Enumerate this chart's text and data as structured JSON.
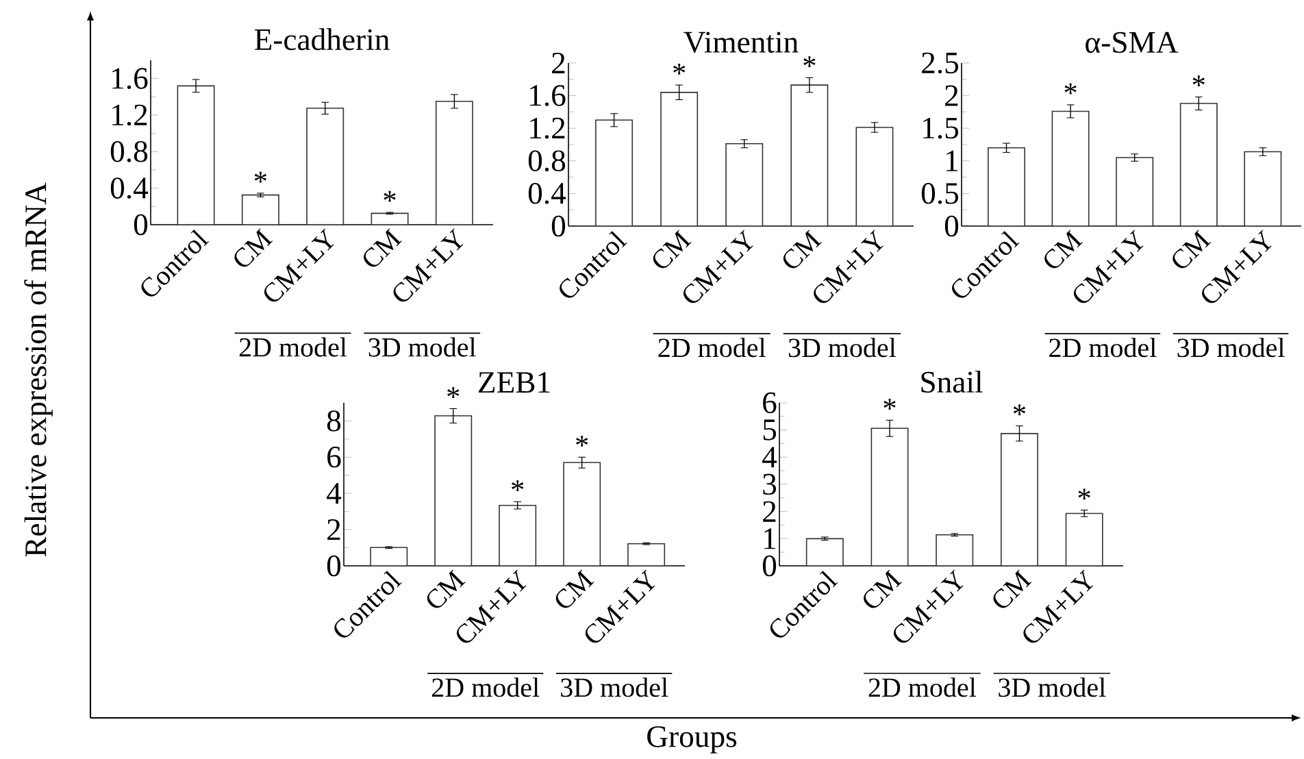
{
  "chart_data": [
    {
      "type": "bar",
      "title": "E-cadherin",
      "ylabel": "Relative expression of mRNA",
      "xlabel": "Groups",
      "categories": [
        "Control",
        "CM",
        "CM+LY",
        "CM",
        "CM+LY"
      ],
      "values": [
        1.52,
        0.325,
        1.275,
        0.125,
        1.35
      ],
      "errors": [
        0.07,
        0.02,
        0.065,
        0.01,
        0.075
      ],
      "value_labels": [
        null,
        "*",
        null,
        "*",
        null
      ],
      "color": "#ffffff",
      "ylim": [
        0,
        1.8
      ],
      "yticks": [
        0,
        0.4,
        0.8,
        1.2,
        1.6
      ],
      "annotations": [
        "2D model",
        "3D model"
      ]
    },
    {
      "type": "bar",
      "title": "Vimentin",
      "categories": [
        "Control",
        "CM",
        "CM+LY",
        "CM",
        "CM+LY"
      ],
      "values": [
        1.3,
        1.64,
        1.01,
        1.73,
        1.21
      ],
      "errors": [
        0.08,
        0.09,
        0.05,
        0.09,
        0.06
      ],
      "value_labels": [
        null,
        "*",
        null,
        "*",
        null
      ],
      "color": "#ffffff",
      "ylim": [
        0,
        2
      ],
      "yticks": [
        0,
        0.4,
        0.8,
        1.2,
        1.6,
        2
      ],
      "annotations": [
        "2D model",
        "3D model"
      ]
    },
    {
      "type": "bar",
      "title": "α-SMA",
      "categories": [
        "Control",
        "CM",
        "CM+LY",
        "CM",
        "CM+LY"
      ],
      "values": [
        1.2,
        1.76,
        1.05,
        1.88,
        1.14
      ],
      "errors": [
        0.07,
        0.1,
        0.055,
        0.1,
        0.06
      ],
      "value_labels": [
        null,
        "*",
        null,
        "*",
        null
      ],
      "color": "#ffffff",
      "ylim": [
        0,
        2.5
      ],
      "yticks": [
        0,
        0.5,
        1,
        1.5,
        2,
        2.5
      ],
      "annotations": [
        "2D model",
        "3D model"
      ]
    },
    {
      "type": "bar",
      "title": "ZEB1",
      "categories": [
        "Control",
        "CM",
        "CM+LY",
        "CM",
        "CM+LY"
      ],
      "values": [
        1.01,
        8.28,
        3.34,
        5.7,
        1.22
      ],
      "errors": [
        0.05,
        0.4,
        0.2,
        0.3,
        0.05
      ],
      "value_labels": [
        null,
        "*",
        "*",
        "*",
        null
      ],
      "color": "#ffffff",
      "ylim": [
        0,
        9
      ],
      "yticks": [
        0,
        2,
        4,
        6,
        8
      ],
      "annotations": [
        "2D model",
        "3D model"
      ]
    },
    {
      "type": "bar",
      "title": "Snail",
      "categories": [
        "Control",
        "CM",
        "CM+LY",
        "CM",
        "CM+LY"
      ],
      "values": [
        1.0,
        5.06,
        1.14,
        4.87,
        1.93
      ],
      "errors": [
        0.06,
        0.3,
        0.05,
        0.28,
        0.12
      ],
      "value_labels": [
        null,
        "*",
        null,
        "*",
        "*"
      ],
      "color": "#ffffff",
      "ylim": [
        0,
        6
      ],
      "yticks": [
        0,
        1,
        2,
        3,
        4,
        5,
        6
      ],
      "annotations": [
        "2D model",
        "3D model"
      ]
    }
  ]
}
